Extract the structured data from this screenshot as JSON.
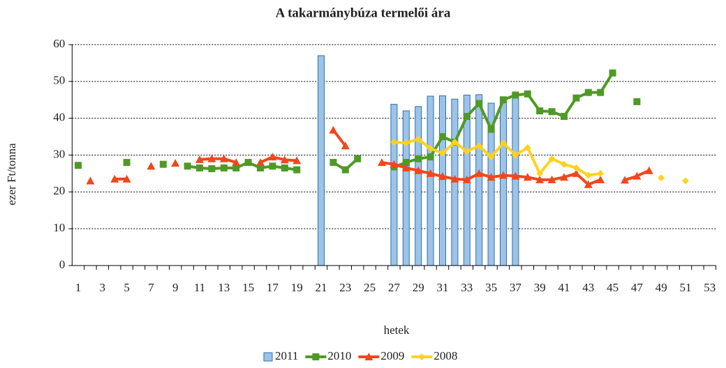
{
  "chart_data": {
    "type": "bar",
    "title": "A takarmánybúza termelői ára",
    "x_label": "hetek",
    "y_label": "ezer Ft/tonna",
    "categories": [
      "1",
      null,
      "3",
      null,
      "5",
      null,
      "7",
      null,
      "9",
      null,
      "11",
      null,
      "13",
      null,
      "15",
      null,
      "17",
      null,
      "19",
      null,
      "21",
      null,
      "23",
      null,
      "25",
      null,
      "27",
      null,
      "29",
      null,
      "31",
      null,
      "33",
      null,
      "35",
      null,
      "37",
      null,
      "39",
      null,
      "41",
      null,
      "43",
      null,
      "45",
      null,
      "47",
      null,
      "49",
      null,
      "51",
      null,
      "53"
    ],
    "ylim": [
      0,
      60
    ],
    "yticks": [
      0,
      10,
      20,
      30,
      40,
      50,
      60
    ],
    "grid": true,
    "legend": "bottom",
    "series": [
      {
        "name": "2011",
        "type": "bar",
        "color": "#9dc3e6",
        "stroke": "#2f6fb5",
        "values": [
          null,
          null,
          null,
          null,
          null,
          null,
          null,
          null,
          null,
          null,
          null,
          null,
          null,
          null,
          null,
          null,
          null,
          null,
          null,
          null,
          57,
          null,
          null,
          null,
          null,
          null,
          43.8,
          42,
          43.2,
          46,
          46.1,
          45.2,
          46.3,
          46.4,
          44.1,
          45,
          46.6,
          null,
          null,
          null,
          null,
          null,
          null,
          null,
          null,
          null,
          null,
          null,
          null,
          null,
          null,
          null,
          null
        ]
      },
      {
        "name": "2010",
        "type": "line",
        "marker": "square",
        "color": "#4f9a26",
        "values": [
          27.2,
          null,
          null,
          null,
          28,
          null,
          null,
          27.5,
          null,
          27,
          26.5,
          26.3,
          26.5,
          26.5,
          28,
          26.5,
          27,
          26.5,
          26,
          null,
          null,
          28,
          26,
          29,
          null,
          null,
          26.8,
          28,
          29,
          29.5,
          35,
          33.5,
          40.5,
          44,
          37,
          45,
          46.3,
          46.6,
          42,
          41.8,
          40.5,
          45.5,
          47,
          47,
          52.3,
          null,
          44.5,
          null,
          null,
          null,
          null,
          null,
          null
        ]
      },
      {
        "name": "2009",
        "type": "line",
        "marker": "triangle",
        "color": "#f2461c",
        "values": [
          null,
          23,
          null,
          23.5,
          23.5,
          null,
          27,
          null,
          27.8,
          null,
          28.8,
          29,
          29,
          28,
          null,
          28,
          29.5,
          28.7,
          28.5,
          null,
          null,
          36.8,
          32.5,
          null,
          null,
          28,
          27.5,
          26.5,
          25.8,
          25,
          24.2,
          23.5,
          23.3,
          25,
          24,
          24.5,
          24.3,
          24,
          23.3,
          23.3,
          24,
          25,
          22,
          23.3,
          null,
          23.2,
          24.3,
          25.8,
          null,
          null,
          null,
          null,
          null
        ]
      },
      {
        "name": "2008",
        "type": "line",
        "marker": "diamond",
        "color": "#ffd21f",
        "values": [
          null,
          null,
          null,
          null,
          null,
          null,
          null,
          null,
          null,
          null,
          null,
          null,
          null,
          null,
          null,
          null,
          null,
          null,
          null,
          null,
          null,
          null,
          null,
          null,
          null,
          null,
          33.5,
          33.3,
          34.3,
          31.8,
          30.5,
          33.5,
          31,
          32.5,
          29.5,
          33.3,
          30,
          32,
          25,
          29,
          27.5,
          26.5,
          24.5,
          25,
          null,
          null,
          null,
          null,
          23.8,
          null,
          23,
          null,
          null
        ]
      }
    ]
  }
}
